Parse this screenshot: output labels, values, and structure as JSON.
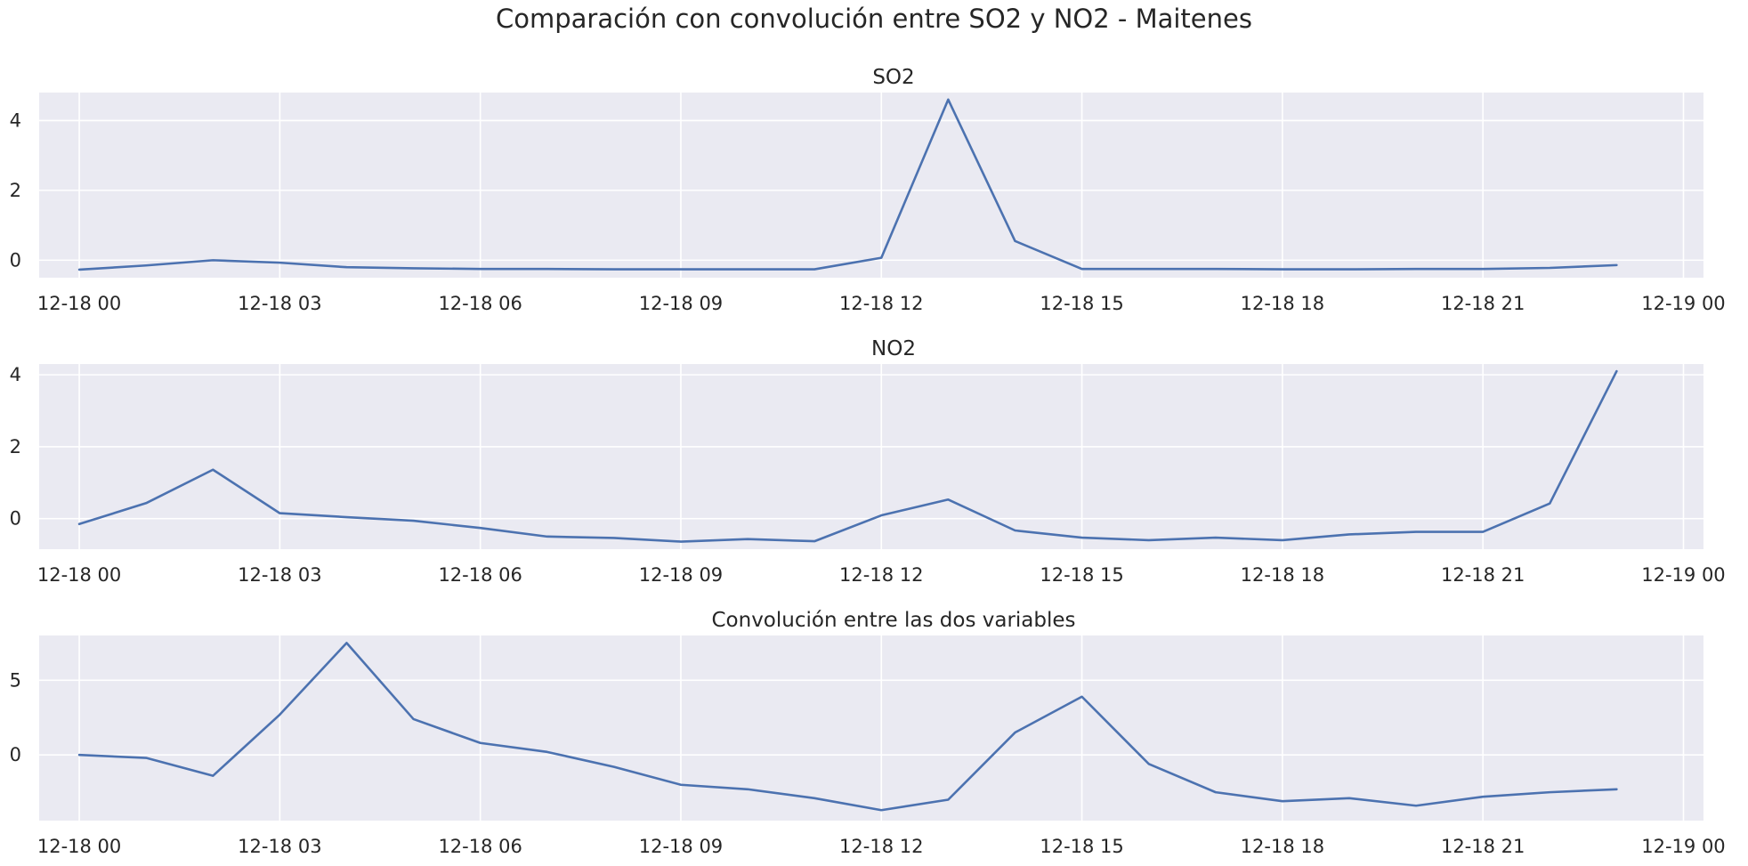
{
  "suptitle": "Comparación con convolución entre SO2 y NO2 - Maitenes",
  "colors": {
    "line": "#4c72b0",
    "panel_bg": "#eaeaf2",
    "grid": "#ffffff",
    "text": "#262626"
  },
  "chart_data": [
    {
      "type": "line",
      "title": "SO2",
      "xlabel": "",
      "ylabel": "",
      "grid": true,
      "x": [
        "12-18 00:00",
        "12-18 01:00",
        "12-18 02:00",
        "12-18 03:00",
        "12-18 04:00",
        "12-18 05:00",
        "12-18 06:00",
        "12-18 07:00",
        "12-18 08:00",
        "12-18 09:00",
        "12-18 10:00",
        "12-18 11:00",
        "12-18 12:00",
        "12-18 13:00",
        "12-18 14:00",
        "12-18 15:00",
        "12-18 16:00",
        "12-18 17:00",
        "12-18 18:00",
        "12-18 19:00",
        "12-18 20:00",
        "12-18 21:00",
        "12-18 22:00",
        "12-18 23:00"
      ],
      "values": [
        -0.27,
        -0.15,
        0.0,
        -0.07,
        -0.2,
        -0.23,
        -0.25,
        -0.25,
        -0.26,
        -0.26,
        -0.26,
        -0.26,
        0.07,
        4.6,
        0.55,
        -0.25,
        -0.25,
        -0.25,
        -0.26,
        -0.26,
        -0.25,
        -0.25,
        -0.22,
        -0.14
      ],
      "ylim": [
        -0.5,
        4.8
      ],
      "xlim_hours": [
        -0.6,
        24.3
      ],
      "yticks": [
        0,
        2,
        4
      ],
      "ytick_labels": [
        "0",
        "2",
        "4"
      ],
      "xticks_hours": [
        0,
        3,
        6,
        9,
        12,
        15,
        18,
        21,
        24
      ],
      "xtick_labels": [
        "12-18 00",
        "12-18 03",
        "12-18 06",
        "12-18 09",
        "12-18 12",
        "12-18 15",
        "12-18 18",
        "12-18 21",
        "12-19 00"
      ]
    },
    {
      "type": "line",
      "title": "NO2",
      "xlabel": "",
      "ylabel": "",
      "grid": true,
      "x": [
        "12-18 00:00",
        "12-18 01:00",
        "12-18 02:00",
        "12-18 03:00",
        "12-18 04:00",
        "12-18 05:00",
        "12-18 06:00",
        "12-18 07:00",
        "12-18 08:00",
        "12-18 09:00",
        "12-18 10:00",
        "12-18 11:00",
        "12-18 12:00",
        "12-18 13:00",
        "12-18 14:00",
        "12-18 15:00",
        "12-18 16:00",
        "12-18 17:00",
        "12-18 18:00",
        "12-18 19:00",
        "12-18 20:00",
        "12-18 21:00",
        "12-18 22:00",
        "12-18 23:00"
      ],
      "values": [
        -0.15,
        0.43,
        1.36,
        0.15,
        0.04,
        -0.06,
        -0.26,
        -0.5,
        -0.54,
        -0.64,
        -0.57,
        -0.63,
        0.09,
        0.53,
        -0.33,
        -0.53,
        -0.6,
        -0.53,
        -0.6,
        -0.44,
        -0.37,
        -0.37,
        0.42,
        4.1
      ],
      "ylim": [
        -0.85,
        4.3
      ],
      "xlim_hours": [
        -0.6,
        24.3
      ],
      "yticks": [
        0,
        2,
        4
      ],
      "ytick_labels": [
        "0",
        "2",
        "4"
      ],
      "xticks_hours": [
        0,
        3,
        6,
        9,
        12,
        15,
        18,
        21,
        24
      ],
      "xtick_labels": [
        "12-18 00",
        "12-18 03",
        "12-18 06",
        "12-18 09",
        "12-18 12",
        "12-18 15",
        "12-18 18",
        "12-18 21",
        "12-19 00"
      ]
    },
    {
      "type": "line",
      "title": "Convolución entre las dos variables",
      "xlabel": "",
      "ylabel": "",
      "grid": true,
      "x": [
        "12-18 00:00",
        "12-18 01:00",
        "12-18 02:00",
        "12-18 03:00",
        "12-18 04:00",
        "12-18 05:00",
        "12-18 06:00",
        "12-18 07:00",
        "12-18 08:00",
        "12-18 09:00",
        "12-18 10:00",
        "12-18 11:00",
        "12-18 12:00",
        "12-18 13:00",
        "12-18 14:00",
        "12-18 15:00",
        "12-18 16:00",
        "12-18 17:00",
        "12-18 18:00",
        "12-18 19:00",
        "12-18 20:00",
        "12-18 21:00",
        "12-18 22:00",
        "12-18 23:00"
      ],
      "values": [
        0.0,
        -0.2,
        -1.4,
        2.7,
        7.5,
        2.4,
        0.8,
        0.2,
        -0.8,
        -2.0,
        -2.3,
        -2.9,
        -3.7,
        -3.0,
        1.5,
        3.9,
        -0.6,
        -2.5,
        -3.1,
        -2.9,
        -3.4,
        -2.8,
        -2.5,
        -2.3
      ],
      "ylim": [
        -4.4,
        8.0
      ],
      "xlim_hours": [
        -0.6,
        24.3
      ],
      "yticks": [
        0,
        5
      ],
      "ytick_labels": [
        "0",
        "5"
      ],
      "xticks_hours": [
        0,
        3,
        6,
        9,
        12,
        15,
        18,
        21,
        24
      ],
      "xtick_labels": [
        "12-18 00",
        "12-18 03",
        "12-18 06",
        "12-18 09",
        "12-18 12",
        "12-18 15",
        "12-18 18",
        "12-18 21",
        "12-19 00"
      ]
    }
  ]
}
